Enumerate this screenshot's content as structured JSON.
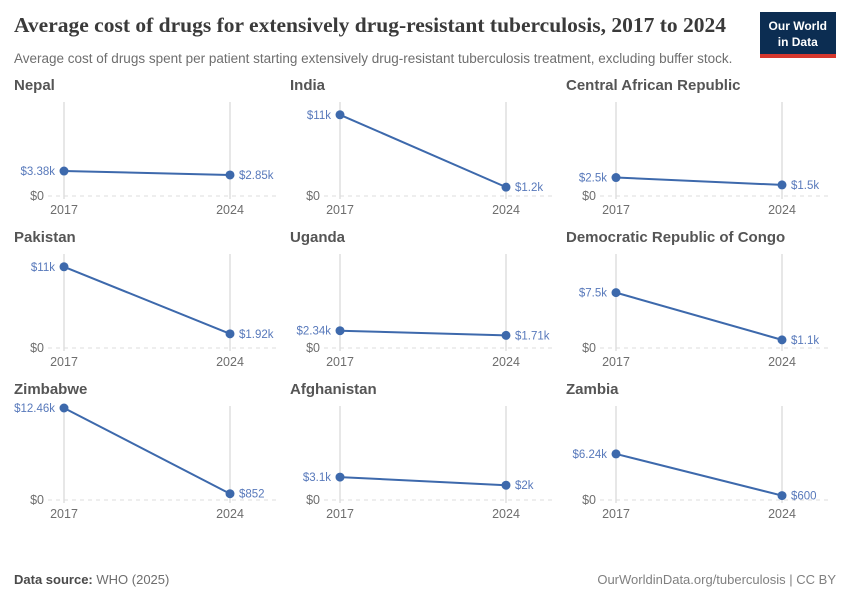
{
  "header": {
    "title": "Average cost of drugs for extensively drug-resistant tuberculosis, 2017 to 2024",
    "subtitle": "Average cost of drugs spent per patient starting extensively drug-resistant tuberculosis treatment, excluding buffer stock.",
    "logo": {
      "line1": "Our World",
      "line2": "in Data"
    }
  },
  "chart_data": {
    "type": "line",
    "facet_grid": [
      3,
      3
    ],
    "x": [
      2017,
      2024
    ],
    "x_tick_labels": [
      "2017",
      "2024"
    ],
    "ylim": [
      0,
      12460
    ],
    "y_zero_label": "$0",
    "legend": "none",
    "grid": "vertical gridlines at 2017 and 2024, dashed zero line",
    "series": [
      {
        "name": "Nepal",
        "values": [
          3380,
          2850
        ],
        "labels": [
          "$3.38k",
          "$2.85k"
        ]
      },
      {
        "name": "India",
        "values": [
          11000,
          1200
        ],
        "labels": [
          "$11k",
          "$1.2k"
        ]
      },
      {
        "name": "Central African Republic",
        "values": [
          2500,
          1500
        ],
        "labels": [
          "$2.5k",
          "$1.5k"
        ]
      },
      {
        "name": "Pakistan",
        "values": [
          11000,
          1920
        ],
        "labels": [
          "$11k",
          "$1.92k"
        ]
      },
      {
        "name": "Uganda",
        "values": [
          2340,
          1710
        ],
        "labels": [
          "$2.34k",
          "$1.71k"
        ]
      },
      {
        "name": "Democratic Republic of Congo",
        "values": [
          7500,
          1100
        ],
        "labels": [
          "$7.5k",
          "$1.1k"
        ]
      },
      {
        "name": "Zimbabwe",
        "values": [
          12460,
          852
        ],
        "labels": [
          "$12.46k",
          "$852"
        ]
      },
      {
        "name": "Afghanistan",
        "values": [
          3100,
          2000
        ],
        "labels": [
          "$3.1k",
          "$2k"
        ]
      },
      {
        "name": "Zambia",
        "values": [
          6240,
          600
        ],
        "labels": [
          "$6.24k",
          "$600"
        ]
      }
    ]
  },
  "colors": {
    "line": "#3d69ac",
    "point": "#3d69ac",
    "value_label": "#5879bb",
    "gridline": "#cfcfcf",
    "zero_line": "#dcdcdc",
    "tick_text": "#6e6e6e",
    "logo_bg": "#0c2d52",
    "logo_red": "#d6372d"
  },
  "footer": {
    "source_label": "Data source:",
    "source_value": "WHO (2025)",
    "citation": "OurWorldinData.org/tuberculosis | CC BY"
  }
}
